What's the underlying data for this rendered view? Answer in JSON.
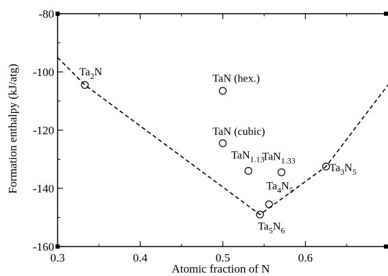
{
  "chart_data": {
    "type": "scatter",
    "title": "",
    "xlabel": "Atomic fraction of N",
    "ylabel": "Formation enthalpy (kJ/atg)",
    "xlim": [
      0.3,
      0.7
    ],
    "ylim": [
      -160,
      -80
    ],
    "x_ticks": [
      0.3,
      0.4,
      0.5,
      0.6
    ],
    "x_tick_labels": [
      "0.3",
      "0.4",
      "0.5",
      "0.6"
    ],
    "y_ticks": [
      -160,
      -140,
      -120,
      -100,
      -80
    ],
    "y_tick_labels": [
      "-160",
      "-140",
      "-120",
      "-100",
      "-80"
    ],
    "grid": false,
    "legend": "none",
    "points": [
      {
        "label": {
          "base": "Ta",
          "sub1": "2",
          "mid": "N",
          "sub2": ""
        },
        "x": 0.333,
        "y": -104.5
      },
      {
        "label": {
          "base": "TaN (hex.)",
          "sub1": "",
          "mid": "",
          "sub2": ""
        },
        "x": 0.5,
        "y": -106.5
      },
      {
        "label": {
          "base": "TaN (cubic)",
          "sub1": "",
          "mid": "",
          "sub2": ""
        },
        "x": 0.5,
        "y": -124.5
      },
      {
        "label": {
          "base": "TaN",
          "sub1": "1.13",
          "mid": "",
          "sub2": ""
        },
        "x": 0.531,
        "y": -134
      },
      {
        "label": {
          "base": "TaN",
          "sub1": "1.33",
          "mid": "",
          "sub2": ""
        },
        "x": 0.571,
        "y": -134.5
      },
      {
        "label": {
          "base": "Ta",
          "sub1": "4",
          "mid": "N",
          "sub2": "5"
        },
        "x": 0.556,
        "y": -145.5
      },
      {
        "label": {
          "base": "Ta",
          "sub1": "5",
          "mid": "N",
          "sub2": "6"
        },
        "x": 0.545,
        "y": -149
      },
      {
        "label": {
          "base": "Ta",
          "sub1": "3",
          "mid": "N",
          "sub2": "5"
        },
        "x": 0.625,
        "y": -132.5
      }
    ],
    "hull_line": {
      "style": "dashed",
      "x": [
        0.3,
        0.333,
        0.545,
        0.625,
        0.7
      ],
      "y": [
        -95,
        -104.5,
        -149,
        -132.5,
        -104.5
      ]
    },
    "colors": {
      "line": "#000000",
      "marker": "#000000",
      "background": "#ffffff"
    }
  }
}
